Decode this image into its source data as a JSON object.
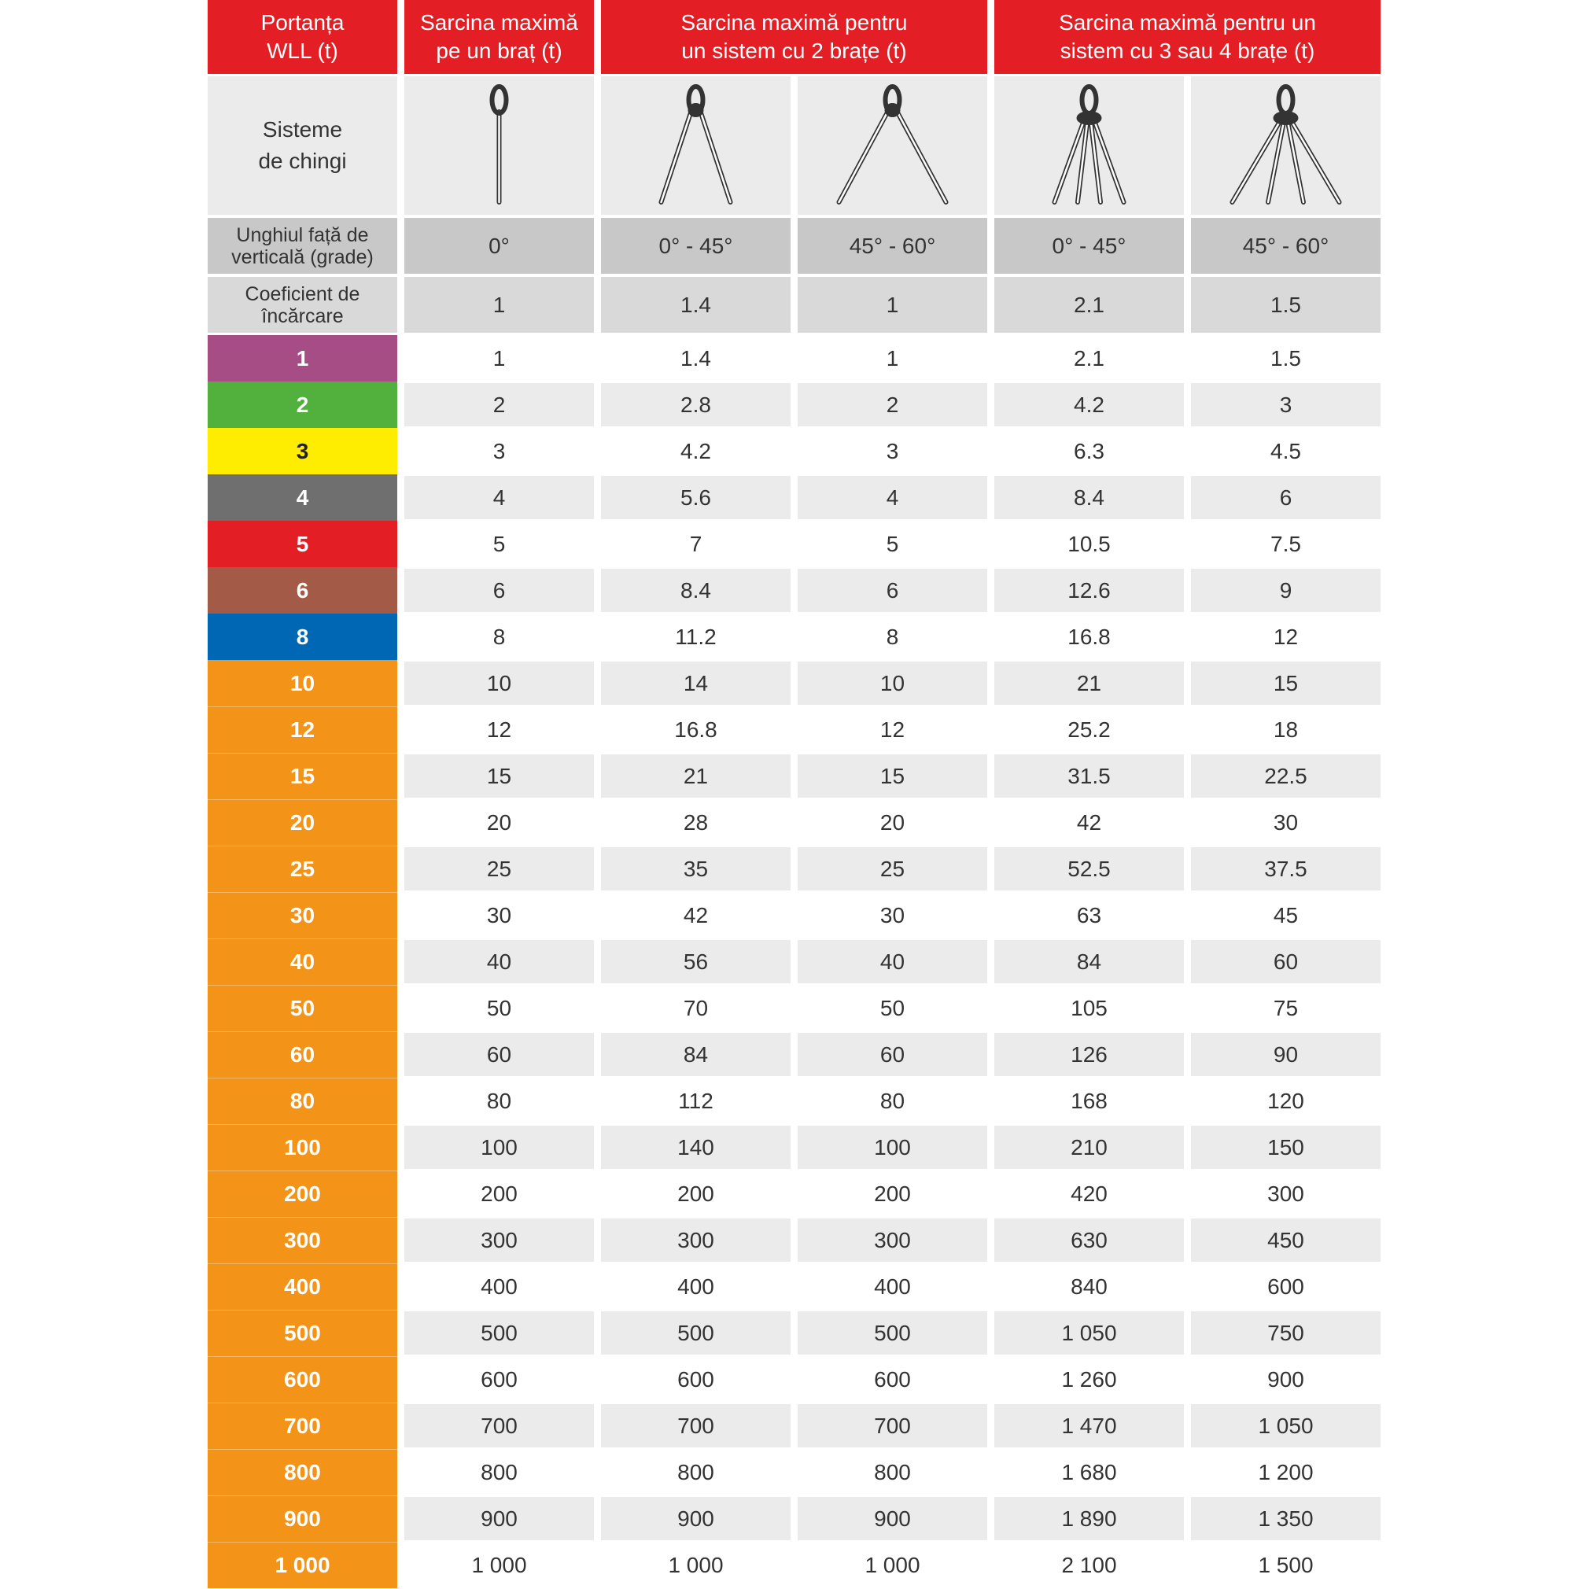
{
  "header": {
    "cells": [
      {
        "lines": [
          "Portanța",
          "WLL (t)"
        ]
      },
      {
        "lines": [
          "Sarcina maximă",
          "pe un braț (t)"
        ]
      },
      {
        "lines": [
          "Sarcina maximă pentru",
          "un sistem cu 2 brațe (t)"
        ]
      },
      {
        "lines": [
          "Sarcina maximă pentru un",
          "sistem cu 3 sau 4 brațe (t)"
        ]
      }
    ]
  },
  "systems_label": [
    "Sisteme",
    "de chingi"
  ],
  "angle": {
    "label": [
      "Unghiul față de",
      "verticală (grade)"
    ],
    "values": [
      "0°",
      "0° - 45°",
      "45° - 60°",
      "0° - 45°",
      "45° - 60°"
    ]
  },
  "coefficient": {
    "label": [
      "Coeficient de",
      "încărcare"
    ],
    "values": [
      "1",
      "1.4",
      "1",
      "2.1",
      "1.5"
    ]
  },
  "rows": [
    {
      "wll": "1",
      "color": "#a64d86",
      "text_color": "#ffffff",
      "values": [
        "1",
        "1.4",
        "1",
        "2.1",
        "1.5"
      ]
    },
    {
      "wll": "2",
      "color": "#52b03c",
      "text_color": "#ffffff",
      "values": [
        "2",
        "2.8",
        "2",
        "4.2",
        "3"
      ]
    },
    {
      "wll": "3",
      "color": "#ffed00",
      "text_color": "#222222",
      "values": [
        "3",
        "4.2",
        "3",
        "6.3",
        "4.5"
      ]
    },
    {
      "wll": "4",
      "color": "#6f6f6f",
      "text_color": "#ffffff",
      "values": [
        "4",
        "5.6",
        "4",
        "8.4",
        "6"
      ]
    },
    {
      "wll": "5",
      "color": "#e31e24",
      "text_color": "#ffffff",
      "values": [
        "5",
        "7",
        "5",
        "10.5",
        "7.5"
      ]
    },
    {
      "wll": "6",
      "color": "#a35a47",
      "text_color": "#ffffff",
      "values": [
        "6",
        "8.4",
        "6",
        "12.6",
        "9"
      ]
    },
    {
      "wll": "8",
      "color": "#0067b4",
      "text_color": "#ffffff",
      "values": [
        "8",
        "11.2",
        "8",
        "16.8",
        "12"
      ]
    },
    {
      "wll": "10",
      "color": "#f39419",
      "text_color": "#ffffff",
      "values": [
        "10",
        "14",
        "10",
        "21",
        "15"
      ]
    },
    {
      "wll": "12",
      "color": "#f39419",
      "text_color": "#ffffff",
      "values": [
        "12",
        "16.8",
        "12",
        "25.2",
        "18"
      ]
    },
    {
      "wll": "15",
      "color": "#f39419",
      "text_color": "#ffffff",
      "values": [
        "15",
        "21",
        "15",
        "31.5",
        "22.5"
      ]
    },
    {
      "wll": "20",
      "color": "#f39419",
      "text_color": "#ffffff",
      "values": [
        "20",
        "28",
        "20",
        "42",
        "30"
      ]
    },
    {
      "wll": "25",
      "color": "#f39419",
      "text_color": "#ffffff",
      "values": [
        "25",
        "35",
        "25",
        "52.5",
        "37.5"
      ]
    },
    {
      "wll": "30",
      "color": "#f39419",
      "text_color": "#ffffff",
      "values": [
        "30",
        "42",
        "30",
        "63",
        "45"
      ]
    },
    {
      "wll": "40",
      "color": "#f39419",
      "text_color": "#ffffff",
      "values": [
        "40",
        "56",
        "40",
        "84",
        "60"
      ]
    },
    {
      "wll": "50",
      "color": "#f39419",
      "text_color": "#ffffff",
      "values": [
        "50",
        "70",
        "50",
        "105",
        "75"
      ]
    },
    {
      "wll": "60",
      "color": "#f39419",
      "text_color": "#ffffff",
      "values": [
        "60",
        "84",
        "60",
        "126",
        "90"
      ]
    },
    {
      "wll": "80",
      "color": "#f39419",
      "text_color": "#ffffff",
      "values": [
        "80",
        "112",
        "80",
        "168",
        "120"
      ]
    },
    {
      "wll": "100",
      "color": "#f39419",
      "text_color": "#ffffff",
      "values": [
        "100",
        "140",
        "100",
        "210",
        "150"
      ]
    },
    {
      "wll": "200",
      "color": "#f39419",
      "text_color": "#ffffff",
      "values": [
        "200",
        "200",
        "200",
        "420",
        "300"
      ]
    },
    {
      "wll": "300",
      "color": "#f39419",
      "text_color": "#ffffff",
      "values": [
        "300",
        "300",
        "300",
        "630",
        "450"
      ]
    },
    {
      "wll": "400",
      "color": "#f39419",
      "text_color": "#ffffff",
      "values": [
        "400",
        "400",
        "400",
        "840",
        "600"
      ]
    },
    {
      "wll": "500",
      "color": "#f39419",
      "text_color": "#ffffff",
      "values": [
        "500",
        "500",
        "500",
        "1 050",
        "750"
      ]
    },
    {
      "wll": "600",
      "color": "#f39419",
      "text_color": "#ffffff",
      "values": [
        "600",
        "600",
        "600",
        "1 260",
        "900"
      ]
    },
    {
      "wll": "700",
      "color": "#f39419",
      "text_color": "#ffffff",
      "values": [
        "700",
        "700",
        "700",
        "1 470",
        "1 050"
      ]
    },
    {
      "wll": "800",
      "color": "#f39419",
      "text_color": "#ffffff",
      "values": [
        "800",
        "800",
        "800",
        "1 680",
        "1 200"
      ]
    },
    {
      "wll": "900",
      "color": "#f39419",
      "text_color": "#ffffff",
      "values": [
        "900",
        "900",
        "900",
        "1 890",
        "1 350"
      ]
    },
    {
      "wll": "1 000",
      "color": "#f39419",
      "text_color": "#ffffff",
      "values": [
        "1 000",
        "1 000",
        "1 000",
        "2 100",
        "1 500"
      ]
    }
  ]
}
